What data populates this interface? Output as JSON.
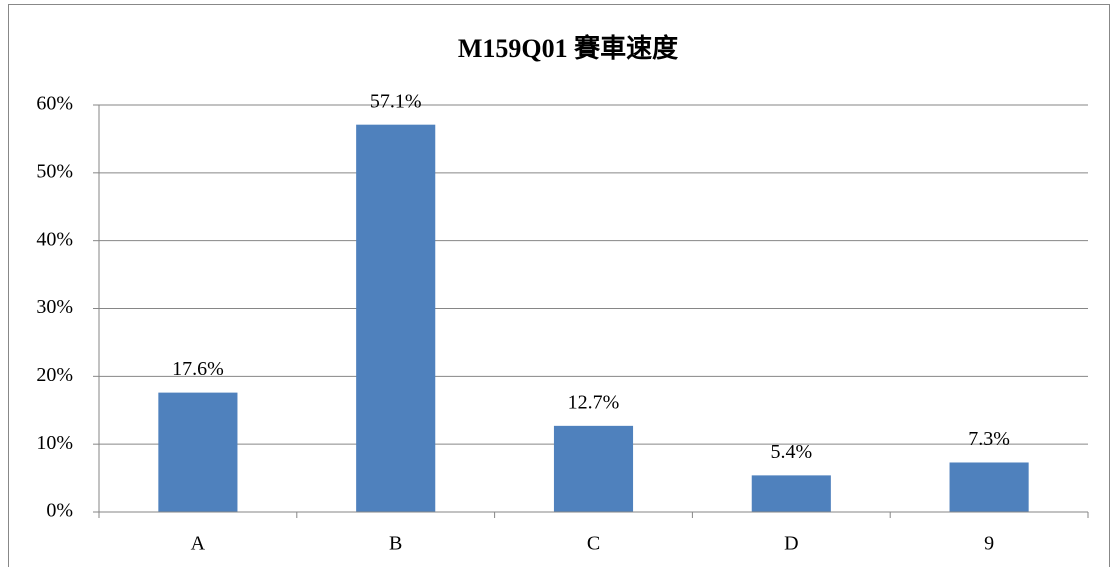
{
  "chart_data": {
    "type": "bar",
    "title": "M159Q01 賽車速度",
    "categories": [
      "A",
      "B",
      "C",
      "D",
      "9"
    ],
    "values": [
      17.6,
      57.1,
      12.7,
      5.4,
      7.3
    ],
    "value_labels": [
      "17.6%",
      "57.1%",
      "12.7%",
      "5.4%",
      "7.3%"
    ],
    "color": "#4f81bd",
    "ylim": [
      0,
      60
    ],
    "yticks": [
      {
        "value": 0,
        "label": "0%"
      },
      {
        "value": 10,
        "label": "10%"
      },
      {
        "value": 20,
        "label": "20%"
      },
      {
        "value": 30,
        "label": "30%"
      },
      {
        "value": 40,
        "label": "40%"
      },
      {
        "value": 50,
        "label": "50%"
      },
      {
        "value": 60,
        "label": "60%"
      }
    ],
    "grid": true
  }
}
